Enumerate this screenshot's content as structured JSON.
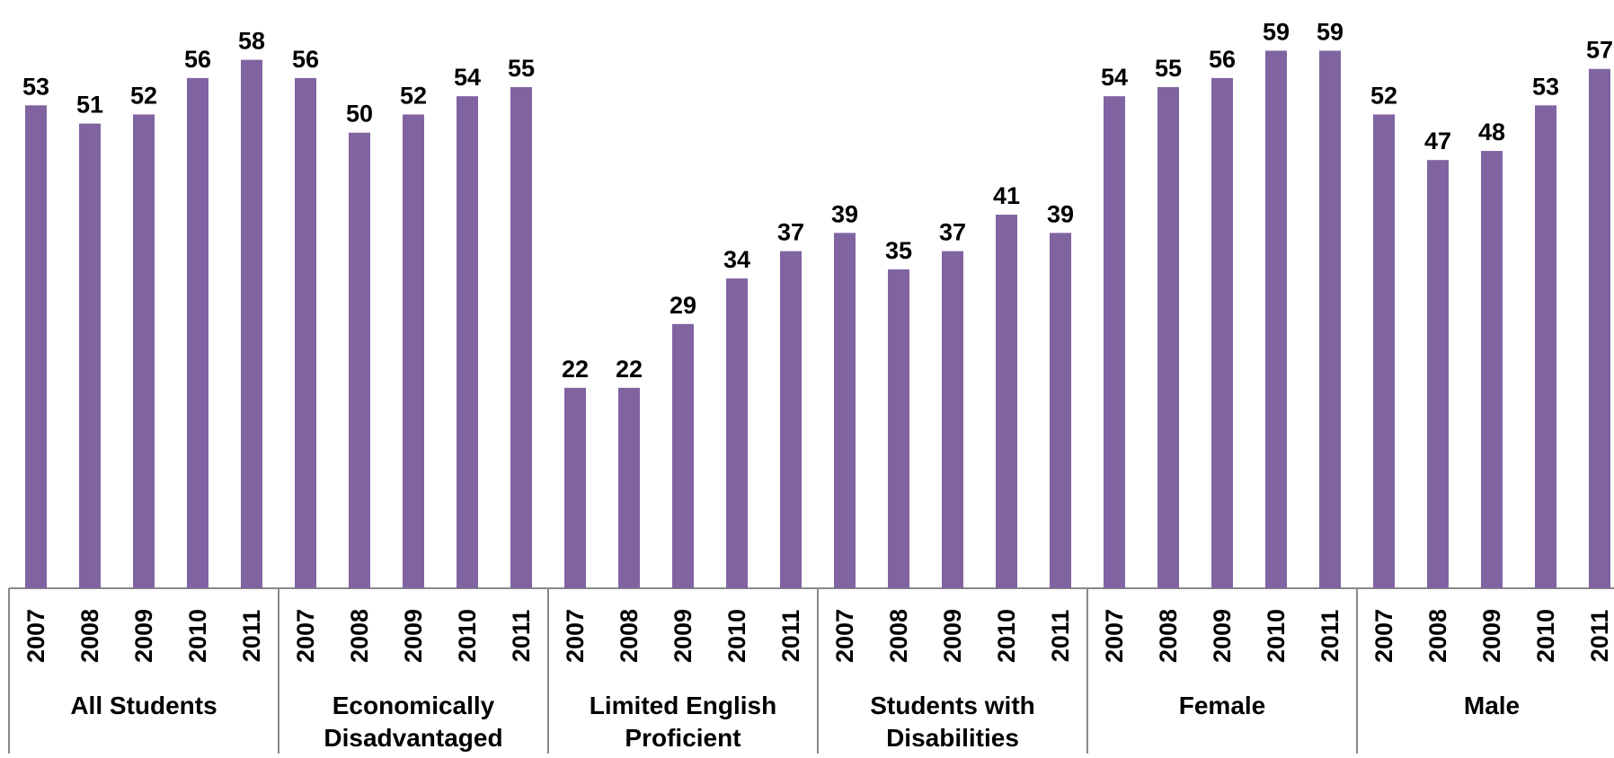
{
  "chart_data": {
    "type": "bar",
    "title": "",
    "xlabel": "",
    "ylabel": "",
    "ylim": [
      0,
      62
    ],
    "grid": false,
    "legend": "none",
    "bar_color": "#8064A2",
    "axis_color": "#888888",
    "label_color": "#000000",
    "years": [
      "2007",
      "2008",
      "2009",
      "2010",
      "2011"
    ],
    "groups": [
      {
        "label_lines": [
          "All Students"
        ],
        "values": [
          53,
          51,
          52,
          56,
          58
        ]
      },
      {
        "label_lines": [
          "Economically",
          "Disadvantaged"
        ],
        "values": [
          56,
          50,
          52,
          54,
          55
        ]
      },
      {
        "label_lines": [
          "Limited English",
          "Proficient"
        ],
        "values": [
          22,
          22,
          29,
          34,
          37
        ]
      },
      {
        "label_lines": [
          "Students with",
          "Disabilities"
        ],
        "values": [
          39,
          35,
          37,
          41,
          39
        ]
      },
      {
        "label_lines": [
          "Female"
        ],
        "values": [
          54,
          55,
          56,
          59,
          59
        ]
      },
      {
        "label_lines": [
          "Male"
        ],
        "values": [
          52,
          47,
          48,
          53,
          57
        ]
      }
    ]
  }
}
